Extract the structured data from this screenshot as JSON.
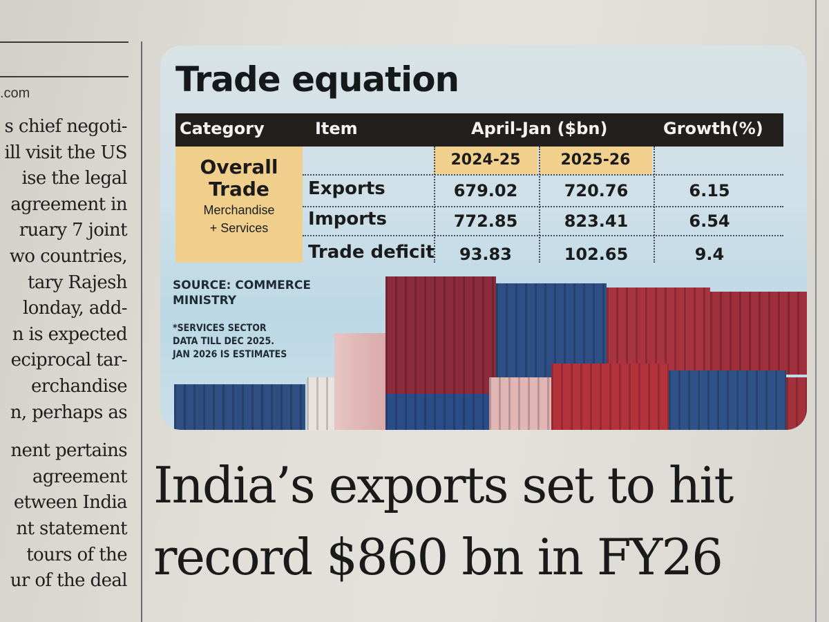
{
  "left_column": {
    "byline": ".com",
    "lines": [
      "s chief negoti-",
      "ill visit the US",
      "ise the legal",
      "agreement in",
      "ruary 7 joint",
      "wo countries,",
      "tary Rajesh",
      "londay, add-",
      "n is expected",
      "eciprocal tar-",
      "erchandise",
      "n, perhaps as",
      "nent pertains",
      "agreement",
      "etween India",
      "nt statement",
      "tours of the",
      "ur of the deal"
    ]
  },
  "infographic": {
    "title": "Trade equation",
    "header": {
      "category": "Category",
      "item": "Item",
      "period": "April-Jan ($bn)",
      "growth": "Growth(%)"
    },
    "years": [
      "2024-25",
      "2025-26"
    ],
    "category_box": {
      "line1": "Overall",
      "line2": "Trade",
      "line3": "Merchandise",
      "line4": "+ Services"
    },
    "rows": [
      {
        "item": "Exports",
        "v2425": "679.02",
        "v2526": "720.76",
        "growth": "6.15"
      },
      {
        "item": "Imports",
        "v2425": "772.85",
        "v2526": "823.41",
        "growth": "6.54"
      },
      {
        "item": "Trade deficit",
        "v2425": "93.83",
        "v2526": "102.65",
        "growth": "9.4"
      }
    ],
    "source_line1": "SOURCE: COMMERCE",
    "source_line2": "MINISTRY",
    "footnote_line1": "*SERVICES SECTOR",
    "footnote_line2": "DATA TILL DEC 2025.",
    "footnote_line3": "JAN 2026 IS ESTIMATES"
  },
  "headline": {
    "line1": "India’s exports set to hit",
    "line2": "record $860 bn in FY26"
  },
  "colors": {
    "header_bg": "#221f1d",
    "highlight": "#efcf8b",
    "container_red": "#9c2d3c",
    "container_blue": "#2d4f86"
  }
}
